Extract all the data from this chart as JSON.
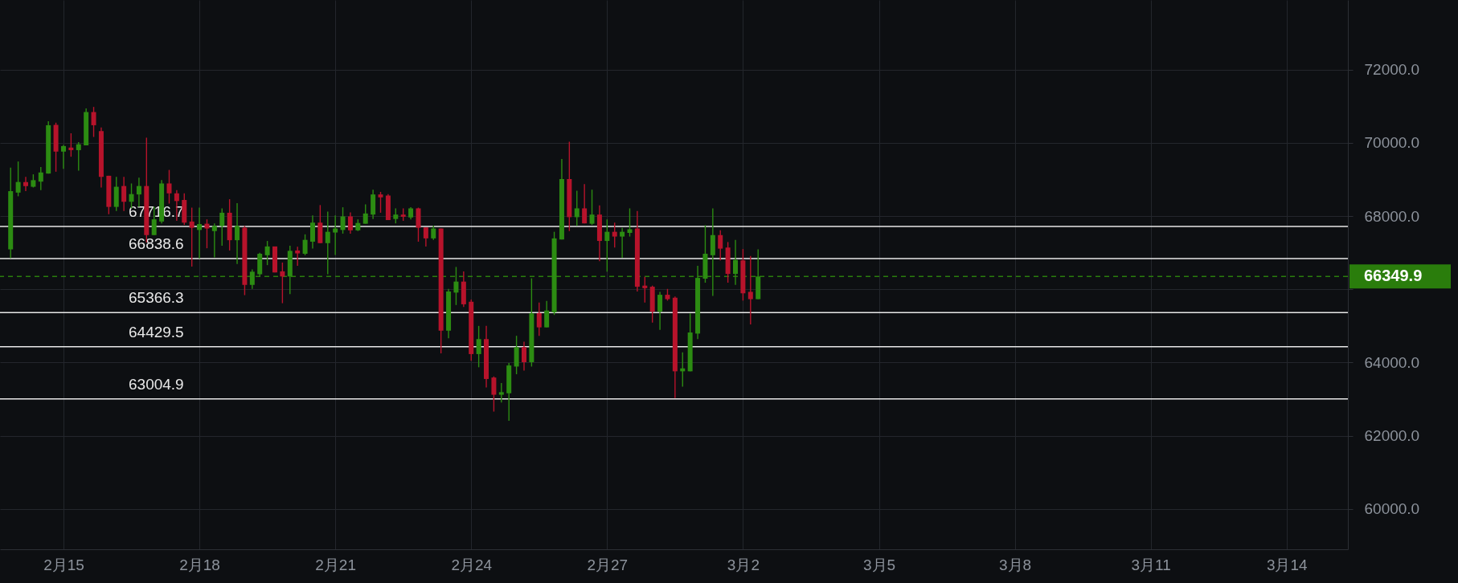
{
  "chart_data": {
    "type": "candlestick",
    "x": [
      "--02-13T20:00",
      "--02-14T00:00",
      "--02-14T04:00",
      "--02-14T08:00",
      "--02-14T12:00",
      "--02-14T16:00",
      "--02-14T20:00",
      "--02-15T00:00",
      "--02-15T04:00",
      "--02-15T08:00",
      "--02-15T12:00",
      "--02-15T16:00",
      "--02-15T20:00",
      "--02-16T00:00",
      "--02-16T04:00",
      "--02-16T08:00",
      "--02-16T12:00",
      "--02-16T16:00",
      "--02-16T20:00",
      "--02-17T00:00",
      "--02-17T04:00",
      "--02-17T08:00",
      "--02-17T12:00",
      "--02-17T16:00",
      "--02-17T20:00",
      "--02-18T00:00",
      "--02-18T04:00",
      "--02-18T08:00",
      "--02-18T12:00",
      "--02-18T16:00",
      "--02-18T20:00",
      "--02-19T00:00",
      "--02-19T04:00",
      "--02-19T08:00",
      "--02-19T12:00",
      "--02-19T16:00",
      "--02-19T20:00",
      "--02-20T00:00",
      "--02-20T04:00",
      "--02-20T08:00",
      "--02-20T12:00",
      "--02-20T16:00",
      "--02-20T20:00",
      "--02-21T00:00",
      "--02-21T04:00",
      "--02-21T08:00",
      "--02-21T12:00",
      "--02-21T16:00",
      "--02-21T20:00",
      "--02-22T00:00",
      "--02-22T04:00",
      "--02-22T08:00",
      "--02-22T12:00",
      "--02-22T16:00",
      "--02-22T20:00",
      "--02-23T00:00",
      "--02-23T04:00",
      "--02-23T08:00",
      "--02-23T12:00",
      "--02-23T16:00",
      "--02-23T20:00",
      "--02-24T00:00",
      "--02-24T04:00",
      "--02-24T08:00",
      "--02-24T12:00",
      "--02-24T16:00",
      "--02-24T20:00",
      "--02-25T00:00",
      "--02-25T04:00",
      "--02-25T08:00",
      "--02-25T12:00",
      "--02-25T16:00",
      "--02-25T20:00",
      "--02-26T00:00",
      "--02-26T04:00",
      "--02-26T08:00",
      "--02-26T12:00",
      "--02-26T16:00",
      "--02-26T20:00",
      "--02-27T00:00",
      "--02-27T04:00",
      "--02-27T08:00",
      "--02-27T12:00",
      "--02-27T16:00",
      "--02-27T20:00",
      "--02-28T00:00",
      "--02-28T04:00",
      "--02-28T08:00",
      "--02-28T12:00",
      "--02-28T16:00",
      "--02-28T20:00",
      "--03-01T00:00",
      "--03-01T04:00",
      "--03-01T08:00",
      "--03-01T12:00",
      "--03-01T16:00",
      "--03-01T20:00",
      "--03-02T00:00",
      "--03-02T04:00",
      "--03-02T08:00"
    ],
    "ohlc": [
      [
        67090,
        69320,
        66850,
        68680
      ],
      [
        68640,
        69490,
        68540,
        68930
      ],
      [
        68930,
        69070,
        68680,
        68820
      ],
      [
        68800,
        69140,
        68780,
        68980
      ],
      [
        68940,
        69340,
        68710,
        69190
      ],
      [
        69160,
        70590,
        69160,
        70480
      ],
      [
        70490,
        70550,
        69210,
        69760
      ],
      [
        69760,
        69940,
        69290,
        69910
      ],
      [
        69870,
        70260,
        69620,
        69800
      ],
      [
        69800,
        70020,
        69240,
        69960
      ],
      [
        69930,
        70940,
        69930,
        70840
      ],
      [
        70840,
        70980,
        70160,
        70480
      ],
      [
        70320,
        70420,
        68780,
        69070
      ],
      [
        69100,
        69100,
        68050,
        68250
      ],
      [
        68250,
        69070,
        68140,
        68800
      ],
      [
        68820,
        69070,
        68140,
        68390
      ],
      [
        68390,
        68890,
        68210,
        68600
      ],
      [
        68590,
        69050,
        68250,
        68820
      ],
      [
        68820,
        70140,
        67280,
        67480
      ],
      [
        67480,
        68260,
        67480,
        67910
      ],
      [
        67850,
        68980,
        67800,
        68890
      ],
      [
        68890,
        69260,
        68340,
        68620
      ],
      [
        68620,
        68710,
        67870,
        68410
      ],
      [
        68440,
        68620,
        67760,
        67820
      ],
      [
        67850,
        68230,
        66620,
        67680
      ],
      [
        67620,
        68230,
        66840,
        67780
      ],
      [
        67790,
        67910,
        67120,
        67660
      ],
      [
        67590,
        67800,
        66870,
        67730
      ],
      [
        67730,
        68210,
        67190,
        68090
      ],
      [
        68090,
        68460,
        67060,
        67340
      ],
      [
        67340,
        68350,
        66690,
        67730
      ],
      [
        67680,
        67730,
        65840,
        66120
      ],
      [
        66120,
        66540,
        66010,
        66480
      ],
      [
        66410,
        67000,
        66340,
        66970
      ],
      [
        66930,
        67320,
        66660,
        67170
      ],
      [
        67170,
        67170,
        66460,
        66460
      ],
      [
        66490,
        66730,
        65620,
        66350
      ],
      [
        66350,
        67190,
        65870,
        67050
      ],
      [
        67060,
        67160,
        66640,
        66980
      ],
      [
        66970,
        67500,
        66930,
        67350
      ],
      [
        67300,
        68020,
        67110,
        67820
      ],
      [
        67820,
        68300,
        67260,
        67260
      ],
      [
        67260,
        68120,
        66410,
        67570
      ],
      [
        67550,
        68020,
        66940,
        67660
      ],
      [
        67620,
        68240,
        67520,
        67990
      ],
      [
        67990,
        68100,
        67520,
        67610
      ],
      [
        67610,
        67910,
        67590,
        67810
      ],
      [
        67790,
        68320,
        67790,
        68070
      ],
      [
        68040,
        68720,
        67920,
        68590
      ],
      [
        68590,
        68660,
        68090,
        68510
      ],
      [
        68560,
        68600,
        67890,
        67890
      ],
      [
        67920,
        68210,
        67800,
        68040
      ],
      [
        68040,
        68210,
        67870,
        67980
      ],
      [
        67960,
        68240,
        67910,
        68210
      ],
      [
        68210,
        68230,
        67300,
        67680
      ],
      [
        67690,
        67690,
        67170,
        67390
      ],
      [
        67390,
        67740,
        67350,
        67660
      ],
      [
        67660,
        67660,
        64250,
        64870
      ],
      [
        64870,
        66010,
        64660,
        65940
      ],
      [
        65910,
        66610,
        65570,
        66210
      ],
      [
        66210,
        66490,
        65520,
        65590
      ],
      [
        65660,
        65720,
        64050,
        64230
      ],
      [
        64230,
        65000,
        63870,
        64640
      ],
      [
        64640,
        65000,
        63320,
        63550
      ],
      [
        63590,
        63620,
        62660,
        63120
      ],
      [
        63120,
        63440,
        62910,
        63190
      ],
      [
        63160,
        63990,
        62410,
        63920
      ],
      [
        63890,
        64730,
        63680,
        64420
      ],
      [
        64420,
        64570,
        63780,
        64010
      ],
      [
        64010,
        66300,
        63890,
        65340
      ],
      [
        65350,
        65640,
        64730,
        64960
      ],
      [
        64960,
        65680,
        64960,
        65420
      ],
      [
        65370,
        67570,
        65300,
        67390
      ],
      [
        67360,
        69560,
        67360,
        69010
      ],
      [
        69010,
        70030,
        67590,
        67970
      ],
      [
        67970,
        68690,
        67730,
        68210
      ],
      [
        68210,
        68870,
        67800,
        67800
      ],
      [
        67790,
        68720,
        67760,
        68040
      ],
      [
        68040,
        68290,
        66770,
        67320
      ],
      [
        67320,
        67910,
        66480,
        67570
      ],
      [
        67570,
        67820,
        67140,
        67440
      ],
      [
        67440,
        67680,
        66860,
        67570
      ],
      [
        67540,
        68210,
        67440,
        67640
      ],
      [
        67660,
        68140,
        65940,
        66070
      ],
      [
        66100,
        66340,
        65640,
        66030
      ],
      [
        66070,
        66100,
        65090,
        65390
      ],
      [
        65390,
        65930,
        64890,
        65850
      ],
      [
        65850,
        66010,
        65690,
        65730
      ],
      [
        65770,
        65800,
        63030,
        63760
      ],
      [
        63760,
        64280,
        63340,
        63840
      ],
      [
        63760,
        65340,
        63760,
        64820
      ],
      [
        64790,
        66640,
        64640,
        66310
      ],
      [
        66290,
        67750,
        66180,
        66970
      ],
      [
        66930,
        68210,
        65820,
        67480
      ],
      [
        67480,
        67610,
        66790,
        67110
      ],
      [
        67140,
        67290,
        66180,
        66420
      ],
      [
        66420,
        67350,
        66120,
        66800
      ],
      [
        66790,
        67100,
        65690,
        65890
      ],
      [
        65930,
        66910,
        65040,
        65730
      ],
      [
        65730,
        67090,
        65730,
        66349.9
      ]
    ],
    "colors": [
      "#2c8c12",
      "#2c8c12",
      "#b7132b",
      "#2c8c12",
      "#2c8c12",
      "#2c8c12",
      "#b7132b",
      "#2c8c12",
      "#b7132b",
      "#2c8c12",
      "#2c8c12",
      "#b7132b",
      "#b7132b",
      "#b7132b",
      "#2c8c12",
      "#b7132b",
      "#2c8c12",
      "#2c8c12",
      "#b7132b",
      "#2c8c12",
      "#2c8c12",
      "#b7132b",
      "#b7132b",
      "#b7132b",
      "#b7132b",
      "#2c8c12",
      "#b7132b",
      "#2c8c12",
      "#2c8c12",
      "#b7132b",
      "#2c8c12",
      "#b7132b",
      "#2c8c12",
      "#2c8c12",
      "#2c8c12",
      "#b7132b",
      "#b7132b",
      "#2c8c12",
      "#b7132b",
      "#2c8c12",
      "#2c8c12",
      "#b7132b",
      "#2c8c12",
      "#2c8c12",
      "#2c8c12",
      "#b7132b",
      "#2c8c12",
      "#2c8c12",
      "#2c8c12",
      "#b7132b",
      "#b7132b",
      "#2c8c12",
      "#b7132b",
      "#2c8c12",
      "#b7132b",
      "#b7132b",
      "#2c8c12",
      "#b7132b",
      "#2c8c12",
      "#2c8c12",
      "#b7132b",
      "#b7132b",
      "#2c8c12",
      "#b7132b",
      "#b7132b",
      "#2c8c12",
      "#2c8c12",
      "#2c8c12",
      "#b7132b",
      "#2c8c12",
      "#b7132b",
      "#2c8c12",
      "#2c8c12",
      "#2c8c12",
      "#b7132b",
      "#2c8c12",
      "#b7132b",
      "#2c8c12",
      "#b7132b",
      "#2c8c12",
      "#b7132b",
      "#2c8c12",
      "#2c8c12",
      "#b7132b",
      "#b7132b",
      "#b7132b",
      "#2c8c12",
      "#b7132b",
      "#b7132b",
      "#2c8c12",
      "#2c8c12",
      "#2c8c12",
      "#2c8c12",
      "#2c8c12",
      "#b7132b",
      "#b7132b",
      "#2c8c12",
      "#b7132b",
      "#b7132b",
      "#2c8c12"
    ],
    "xlim": [
      "--02-13T16:30",
      "--03-15T06:20"
    ],
    "xticks": [
      {
        "value": "--02-15",
        "label": "2月15"
      },
      {
        "value": "--02-18",
        "label": "2月18"
      },
      {
        "value": "--02-21",
        "label": "2月21"
      },
      {
        "value": "--02-24",
        "label": "2月24"
      },
      {
        "value": "--02-27",
        "label": "2月27"
      },
      {
        "value": "--03-02",
        "label": "3月2"
      },
      {
        "value": "--03-05",
        "label": "3月5"
      },
      {
        "value": "--03-08",
        "label": "3月8"
      },
      {
        "value": "--03-11",
        "label": "3月11"
      },
      {
        "value": "--03-14",
        "label": "3月14"
      }
    ],
    "ylim": [
      58900,
      73900
    ],
    "yticks": [
      {
        "value": 60000,
        "label": "60000.0"
      },
      {
        "value": 62000,
        "label": "62000.0"
      },
      {
        "value": 64000,
        "label": "64000.0"
      },
      {
        "value": 66000,
        "label": null
      },
      {
        "value": 68000,
        "label": "68000.0"
      },
      {
        "value": 70000,
        "label": "70000.0"
      },
      {
        "value": 72000,
        "label": "72000.0"
      }
    ],
    "grid": true,
    "ref_lines": [
      {
        "axis": "y",
        "value": 67716.7,
        "label": "67716.7",
        "color": "#e8e8e8",
        "line_style": "solid"
      },
      {
        "axis": "y",
        "value": 66838.6,
        "label": "66838.6",
        "color": "#e8e8e8",
        "line_style": "solid"
      },
      {
        "axis": "y",
        "value": 65366.3,
        "label": "65366.3",
        "color": "#e8e8e8",
        "line_style": "solid"
      },
      {
        "axis": "y",
        "value": 64429.5,
        "label": "64429.5",
        "color": "#e8e8e8",
        "line_style": "solid"
      },
      {
        "axis": "y",
        "value": 63004.9,
        "label": "63004.9",
        "color": "#e8e8e8",
        "line_style": "solid"
      },
      {
        "axis": "y",
        "value": 66349.9,
        "label": "66349.9",
        "color": "#2a7d0c",
        "line_style": "dashed"
      }
    ]
  }
}
